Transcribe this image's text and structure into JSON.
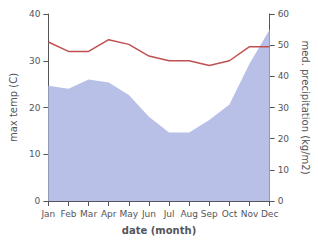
{
  "chart_data": {
    "type": "line",
    "categories": [
      "Jan",
      "Feb",
      "Mar",
      "Apr",
      "May",
      "Jun",
      "Jul",
      "Aug",
      "Sep",
      "Oct",
      "Nov",
      "Dec"
    ],
    "xlabel": "date (month)",
    "ylabel": "max temp (C)",
    "y2label": "med. precipitation (kg/m2)",
    "series": [
      {
        "type": "area",
        "color": "#b8c0e8",
        "axis": "y2",
        "values": [
          37,
          36,
          39,
          38,
          34,
          27,
          22,
          22,
          26,
          31,
          44,
          55
        ]
      },
      {
        "type": "line",
        "color": "#c05050",
        "values": [
          34,
          32,
          32,
          34.5,
          33.5,
          31,
          30,
          30,
          29,
          30,
          33,
          33
        ]
      }
    ],
    "ylim": [
      0,
      40
    ],
    "yticks": [
      0,
      10,
      20,
      30,
      40
    ],
    "y2lim": [
      0,
      60
    ],
    "y2ticks": [
      0,
      10,
      20,
      30,
      40,
      50,
      60
    ],
    "grid": false
  }
}
